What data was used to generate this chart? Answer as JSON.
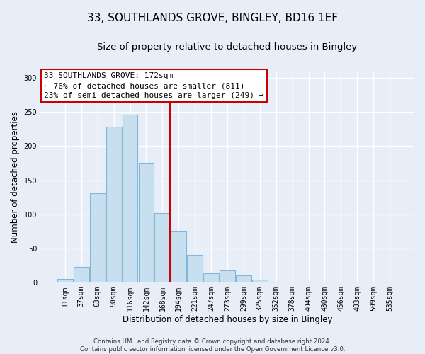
{
  "title": "33, SOUTHLANDS GROVE, BINGLEY, BD16 1EF",
  "subtitle": "Size of property relative to detached houses in Bingley",
  "xlabel": "Distribution of detached houses by size in Bingley",
  "ylabel": "Number of detached properties",
  "bar_labels": [
    "11sqm",
    "37sqm",
    "63sqm",
    "90sqm",
    "116sqm",
    "142sqm",
    "168sqm",
    "194sqm",
    "221sqm",
    "247sqm",
    "273sqm",
    "299sqm",
    "325sqm",
    "352sqm",
    "378sqm",
    "404sqm",
    "430sqm",
    "456sqm",
    "483sqm",
    "509sqm",
    "535sqm"
  ],
  "bar_values": [
    5,
    23,
    131,
    228,
    246,
    175,
    102,
    76,
    40,
    13,
    17,
    10,
    4,
    1,
    0,
    1,
    0,
    0,
    0,
    0,
    1
  ],
  "bar_color": "#c8dff0",
  "bar_edge_color": "#7fb8d8",
  "vline_index": 6,
  "vline_color": "#cc0000",
  "annotation_line1": "33 SOUTHLANDS GROVE: 172sqm",
  "annotation_line2": "← 76% of detached houses are smaller (811)",
  "annotation_line3": "23% of semi-detached houses are larger (249) →",
  "ylim": [
    0,
    310
  ],
  "yticks": [
    0,
    50,
    100,
    150,
    200,
    250,
    300
  ],
  "footer_text": "Contains HM Land Registry data © Crown copyright and database right 2024.\nContains public sector information licensed under the Open Government Licence v3.0.",
  "background_color": "#e8eef8",
  "plot_bg_color": "#e8eef8",
  "grid_color": "#ffffff",
  "title_fontsize": 11,
  "subtitle_fontsize": 9.5,
  "axis_label_fontsize": 8.5,
  "tick_fontsize": 7,
  "annotation_fontsize": 8,
  "footer_fontsize": 6.2
}
